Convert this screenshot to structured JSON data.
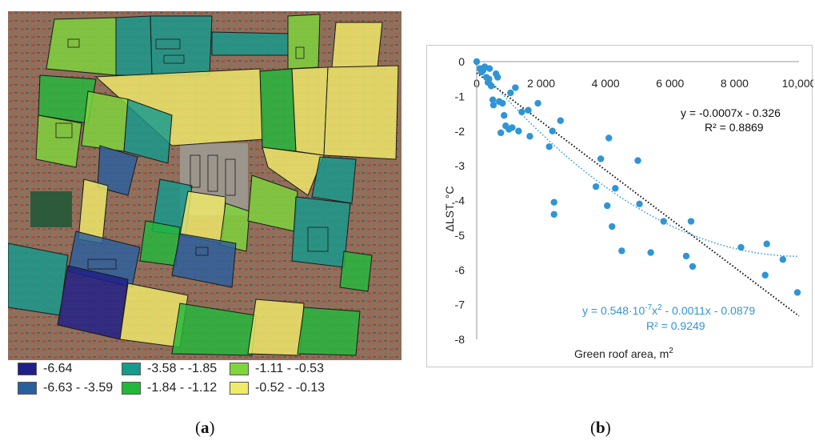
{
  "panel_a": {
    "legend": [
      {
        "label": "-6.64",
        "color": "#1f1f88"
      },
      {
        "label": "-6.63 - -3.59",
        "color": "#2a5f9e"
      },
      {
        "label": "-3.58 - -1.85",
        "color": "#159a8e"
      },
      {
        "label": "-1.84 - -1.12",
        "color": "#22b83a"
      },
      {
        "label": "-1.11 - -0.53",
        "color": "#7ed63c"
      },
      {
        "label": "-0.52 - -0.13",
        "color": "#f0ea6a"
      }
    ]
  },
  "captions": {
    "a_open": "(",
    "a_letter": "a",
    "a_close": ")",
    "b_open": "(",
    "b_letter": "b",
    "b_close": ")"
  },
  "chart_data": {
    "type": "scatter",
    "title": "",
    "xlabel": "Green roof area, m",
    "xlabel_sup": "2",
    "ylabel": "ΔLST, °C",
    "xlim": [
      0,
      10000
    ],
    "ylim": [
      -8,
      0
    ],
    "xticks": [
      "0",
      "2 000",
      "4 000",
      "6 000",
      "8 000",
      "10,000"
    ],
    "yticks": [
      "0",
      "-1",
      "-2",
      "-3",
      "-4",
      "-5",
      "-6",
      "-7",
      "-8"
    ],
    "point_color": "#2f95d6",
    "points": [
      [
        0,
        0
      ],
      [
        100,
        -0.2
      ],
      [
        150,
        -0.3
      ],
      [
        200,
        -0.25
      ],
      [
        250,
        -0.15
      ],
      [
        300,
        -0.45
      ],
      [
        350,
        -0.6
      ],
      [
        380,
        -0.5
      ],
      [
        400,
        -0.2
      ],
      [
        450,
        -0.7
      ],
      [
        500,
        -1.1
      ],
      [
        520,
        -1.25
      ],
      [
        600,
        -0.35
      ],
      [
        650,
        -0.45
      ],
      [
        700,
        -1.15
      ],
      [
        750,
        -2.05
      ],
      [
        800,
        -1.2
      ],
      [
        850,
        -1.55
      ],
      [
        900,
        -1.85
      ],
      [
        1000,
        -1.95
      ],
      [
        1050,
        -0.9
      ],
      [
        1100,
        -1.9
      ],
      [
        1200,
        -0.75
      ],
      [
        1300,
        -2.0
      ],
      [
        1400,
        -1.45
      ],
      [
        1600,
        -1.4
      ],
      [
        1650,
        -2.15
      ],
      [
        1900,
        -1.2
      ],
      [
        2250,
        -2.45
      ],
      [
        2350,
        -2.0
      ],
      [
        2400,
        -4.05
      ],
      [
        2400,
        -4.4
      ],
      [
        2600,
        -1.7
      ],
      [
        3700,
        -3.6
      ],
      [
        3850,
        -2.8
      ],
      [
        4050,
        -4.15
      ],
      [
        4100,
        -2.2
      ],
      [
        4200,
        -4.75
      ],
      [
        4300,
        -3.65
      ],
      [
        4500,
        -5.45
      ],
      [
        5000,
        -2.85
      ],
      [
        5050,
        -4.1
      ],
      [
        5400,
        -5.5
      ],
      [
        5800,
        -4.6
      ],
      [
        6500,
        -5.6
      ],
      [
        6650,
        -4.6
      ],
      [
        6700,
        -5.9
      ],
      [
        8200,
        -5.35
      ],
      [
        8950,
        -6.15
      ],
      [
        9000,
        -5.25
      ],
      [
        9500,
        -5.7
      ],
      [
        9950,
        -6.65
      ]
    ],
    "linear_fit": {
      "a": -0.0007,
      "b": -0.326,
      "color": "#111111",
      "eq": "y = -0.0007x - 0.326",
      "r2": "R² = 0.8869"
    },
    "poly_fit": {
      "a": 5.48e-08,
      "b": -0.0011,
      "c": -0.0879,
      "color": "#2f95d6",
      "eq_pre": "y = 0.548·10",
      "eq_sup1": "-7",
      "eq_mid": "x",
      "eq_sup2": "2",
      "eq_post": " - 0.0011x - 0.0879",
      "r2": "R² = 0.9249"
    }
  }
}
